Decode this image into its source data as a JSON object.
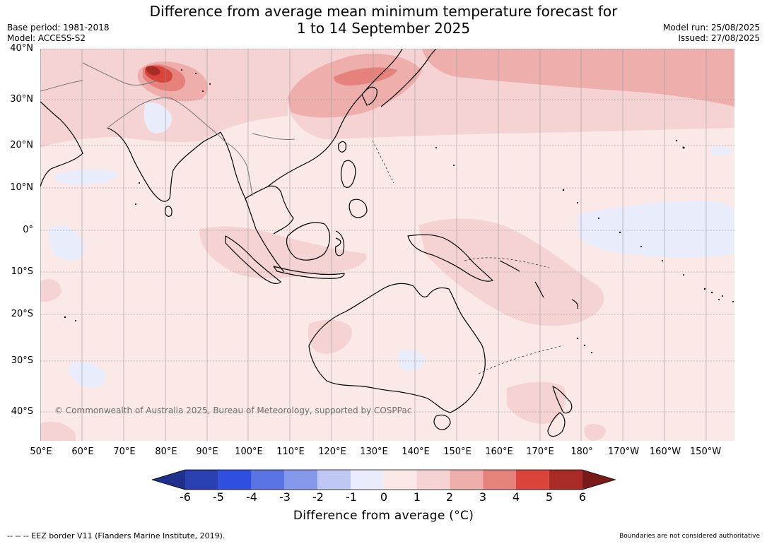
{
  "title": {
    "line1": "Difference from average mean minimum temperature forecast for",
    "line2": "1 to 14 September 2025"
  },
  "meta": {
    "base_period": "Base period: 1981-2018",
    "model": "Model: ACCESS-S2",
    "model_run": "Model run: 25/08/2025",
    "issued": "Issued: 27/08/2025"
  },
  "map": {
    "lat_labels": [
      "40°N",
      "30°N",
      "20°N",
      "10°N",
      "0°",
      "10°S",
      "20°S",
      "30°S",
      "40°S"
    ],
    "lon_labels": [
      "50°E",
      "60°E",
      "70°E",
      "80°E",
      "90°E",
      "100°E",
      "110°E",
      "120°E",
      "130°E",
      "140°E",
      "150°E",
      "160°E",
      "170°E",
      "180°",
      "170°W",
      "160°W",
      "150°W"
    ],
    "copyright": "© Commonwealth of Australia 2025, Bureau of Meteorology, supported by COSPPac",
    "colors": {
      "background_0_1": "#fbe9e8",
      "band_1_2": "#f4d3d2",
      "band_2_3": "#eeaeac",
      "band_3_4": "#e5827c",
      "band_4_5": "#d9443b",
      "band_5_6": "#a92b26",
      "band_over_6": "#7a1a18",
      "band_minus1_0": "#e8ecfb",
      "land_outline": "#000000",
      "grid": "#888888"
    }
  },
  "colorbar": {
    "ticks": [
      "-6",
      "-5",
      "-4",
      "-3",
      "-2",
      "-1",
      "0",
      "1",
      "2",
      "3",
      "4",
      "5",
      "6"
    ],
    "colors": [
      "#1f2f8c",
      "#2a3fb0",
      "#2f4fe0",
      "#5a74e4",
      "#8599ea",
      "#bfc8f4",
      "#e8ecfb",
      "#fbe9e8",
      "#f4d3d2",
      "#eeaeac",
      "#e5827c",
      "#d9443b",
      "#a92b26",
      "#7a1a18"
    ],
    "label": "Difference from average (°C)"
  },
  "footer": {
    "eez": "--  --  -- EEZ border V11 (Flanders Marine Institute, 2019).",
    "disclaimer": "Boundaries are not considered authoritative"
  }
}
